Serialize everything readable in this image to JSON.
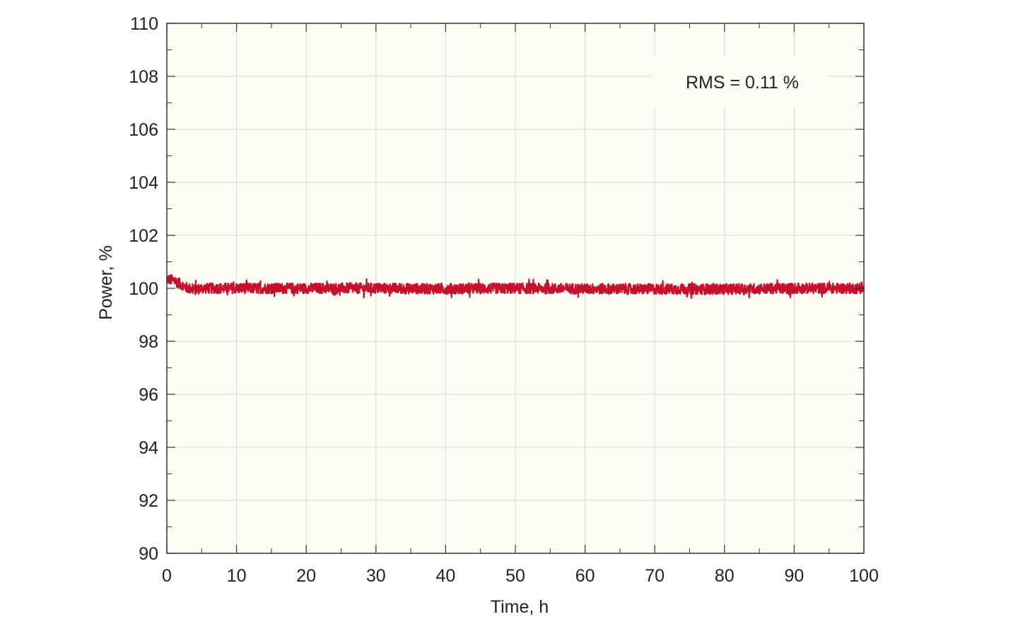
{
  "chart_data": {
    "type": "line",
    "xlabel": "Time, h",
    "ylabel": "Power, %",
    "xlim": [
      0,
      100
    ],
    "ylim": [
      90,
      110
    ],
    "x_ticks": [
      "0",
      "10",
      "20",
      "30",
      "40",
      "50",
      "60",
      "70",
      "80",
      "90",
      "100"
    ],
    "y_ticks": [
      "90",
      "92",
      "94",
      "96",
      "98",
      "100",
      "102",
      "104",
      "106",
      "108",
      "110"
    ],
    "grid": true,
    "annotation": "RMS = 0.11 %",
    "series": [
      {
        "color": "#c8102e",
        "x": [
          0,
          1,
          2,
          3,
          4,
          5,
          10,
          20,
          30,
          40,
          50,
          60,
          70,
          80,
          90,
          100
        ],
        "y": [
          100.35,
          100.3,
          100.15,
          100.0,
          99.95,
          100.0,
          100.0,
          100.0,
          100.0,
          99.98,
          100.0,
          99.98,
          99.97,
          99.97,
          100.0,
          100.0
        ],
        "noise_amplitude": 0.2
      }
    ]
  },
  "colors": {
    "plot_background": "#fcfcf4",
    "grid": "#d8d8d8",
    "axis": "#333333"
  }
}
